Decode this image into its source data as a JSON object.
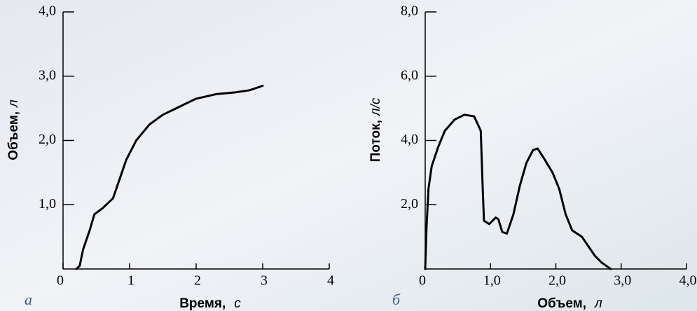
{
  "charts": [
    {
      "chart_data": {
        "type": "line",
        "panel": "а",
        "xlabel": "Время,",
        "xlabel_unit": "с",
        "ylabel": "Объем,",
        "ylabel_unit": "л",
        "xlim": [
          0,
          4
        ],
        "xticks": [
          0,
          1,
          2,
          3,
          4
        ],
        "ylim": [
          0,
          4
        ],
        "yticks": [
          {
            "value": 1,
            "label": "1,0"
          },
          {
            "value": 2,
            "label": "2,0"
          },
          {
            "value": 3,
            "label": "3,0"
          },
          {
            "value": 4,
            "label": "4,0"
          }
        ],
        "series": [
          {
            "color": "#000000",
            "x": [
              0.2,
              0.25,
              0.3,
              0.4,
              0.47,
              0.6,
              0.75,
              0.85,
              0.95,
              1.1,
              1.3,
              1.5,
              1.8,
              2.0,
              2.3,
              2.6,
              2.8,
              3.0
            ],
            "values": [
              0,
              0.05,
              0.3,
              0.6,
              0.85,
              0.95,
              1.1,
              1.4,
              1.7,
              2.0,
              2.25,
              2.4,
              2.55,
              2.65,
              2.72,
              2.75,
              2.78,
              2.85
            ]
          }
        ]
      }
    },
    {
      "chart_data": {
        "type": "line",
        "panel": "б",
        "xlabel": "Объем,",
        "xlabel_unit": "л",
        "ylabel": "Поток,",
        "ylabel_unit": "л/с",
        "xlim": [
          0,
          4
        ],
        "xticks": [
          0,
          {
            "value": 1,
            "label": "1,0"
          },
          {
            "value": 2,
            "label": "2,0"
          },
          {
            "value": 3,
            "label": "3,0"
          },
          {
            "value": 4,
            "label": "4,0"
          }
        ],
        "ylim": [
          0,
          8
        ],
        "yticks": [
          {
            "value": 2,
            "label": "2,0"
          },
          {
            "value": 4,
            "label": "4,0"
          },
          {
            "value": 6,
            "label": "6,0"
          },
          {
            "value": 8,
            "label": "8,0"
          }
        ],
        "series": [
          {
            "color": "#000000",
            "x": [
              0,
              0.02,
              0.05,
              0.1,
              0.2,
              0.3,
              0.45,
              0.6,
              0.75,
              0.85,
              0.88,
              0.9,
              0.98,
              1.08,
              1.12,
              1.18,
              1.25,
              1.35,
              1.45,
              1.55,
              1.65,
              1.72,
              1.8,
              1.95,
              2.05,
              2.15,
              2.25,
              2.4,
              2.5,
              2.6,
              2.7,
              2.84
            ],
            "values": [
              0,
              1.3,
              2.5,
              3.2,
              3.8,
              4.3,
              4.65,
              4.8,
              4.75,
              4.3,
              2.5,
              1.5,
              1.4,
              1.6,
              1.55,
              1.15,
              1.1,
              1.7,
              2.6,
              3.3,
              3.7,
              3.75,
              3.5,
              3.0,
              2.5,
              1.7,
              1.2,
              1.0,
              0.7,
              0.4,
              0.2,
              0
            ]
          }
        ]
      }
    }
  ]
}
